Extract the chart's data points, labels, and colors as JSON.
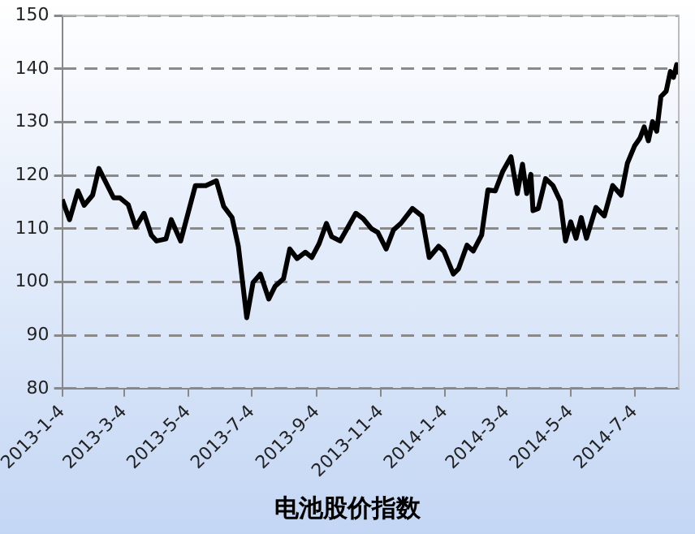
{
  "chart_data": {
    "type": "line",
    "xlabel": "电池股价指数",
    "x": [
      "2013-01-04",
      "2013-01-11",
      "2013-01-19",
      "2013-01-25",
      "2013-02-02",
      "2013-02-08",
      "2013-02-22",
      "2013-02-28",
      "2013-03-08",
      "2013-03-15",
      "2013-03-23",
      "2013-03-30",
      "2013-04-04",
      "2013-04-13",
      "2013-04-18",
      "2013-04-27",
      "2013-05-11",
      "2013-05-21",
      "2013-05-31",
      "2013-06-07",
      "2013-06-15",
      "2013-06-21",
      "2013-06-29",
      "2013-07-05",
      "2013-07-12",
      "2013-07-20",
      "2013-07-26",
      "2013-08-03",
      "2013-08-09",
      "2013-08-16",
      "2013-08-24",
      "2013-08-30",
      "2013-09-06",
      "2013-09-13",
      "2013-09-18",
      "2013-09-26",
      "2013-10-11",
      "2013-10-18",
      "2013-10-26",
      "2013-11-01",
      "2013-11-09",
      "2013-11-16",
      "2013-11-23",
      "2013-12-04",
      "2013-12-13",
      "2013-12-20",
      "2013-12-29",
      "2014-01-03",
      "2014-01-12",
      "2014-01-17",
      "2014-01-25",
      "2014-01-31",
      "2014-02-08",
      "2014-02-14",
      "2014-02-21",
      "2014-02-28",
      "2014-03-08",
      "2014-03-14",
      "2014-03-19",
      "2014-03-23",
      "2014-03-27",
      "2014-03-29",
      "2014-04-03",
      "2014-04-10",
      "2014-04-17",
      "2014-04-24",
      "2014-04-29",
      "2014-05-04",
      "2014-05-09",
      "2014-05-14",
      "2014-05-19",
      "2014-05-28",
      "2014-06-05",
      "2014-06-13",
      "2014-06-21",
      "2014-06-27",
      "2014-07-04",
      "2014-07-09",
      "2014-07-13",
      "2014-07-17",
      "2014-07-21",
      "2014-07-25",
      "2014-07-29",
      "2014-08-03",
      "2014-08-07",
      "2014-08-10",
      "2014-08-13",
      "2014-08-15"
    ],
    "series": [
      {
        "color": "#000000",
        "values": [
          115.5,
          111.7,
          117.1,
          114.4,
          116.3,
          121.3,
          115.8,
          115.8,
          114.5,
          110.3,
          112.9,
          108.8,
          107.7,
          108.1,
          111.7,
          107.7,
          118.1,
          118.1,
          119.0,
          114.2,
          112.1,
          106.7,
          93.3,
          99.9,
          101.5,
          96.8,
          99.2,
          100.6,
          106.2,
          104.4,
          105.6,
          104.6,
          107.2,
          111.0,
          108.5,
          107.7,
          112.9,
          111.9,
          110.0,
          109.3,
          106.2,
          109.8,
          111.0,
          113.8,
          112.4,
          104.6,
          106.7,
          105.8,
          101.5,
          102.5,
          106.9,
          105.8,
          108.8,
          117.3,
          117.1,
          120.7,
          123.5,
          116.6,
          122.1,
          116.6,
          120.2,
          113.4,
          113.8,
          119.4,
          118.1,
          115.2,
          107.7,
          111.3,
          108.2,
          112.1,
          108.2,
          114.0,
          112.4,
          118.1,
          116.3,
          122.3,
          125.6,
          127.0,
          129.1,
          126.5,
          130.1,
          128.3,
          134.8,
          135.8,
          139.5,
          138.4,
          140.8,
          139.0
        ]
      }
    ],
    "xlim": [
      "2013-01-04",
      "2014-08-15"
    ],
    "xticks": [
      {
        "value": "2013-01-04",
        "label": "2013-1-4"
      },
      {
        "value": "2013-03-04",
        "label": "2013-3-4"
      },
      {
        "value": "2013-05-04",
        "label": "2013-5-4"
      },
      {
        "value": "2013-07-04",
        "label": "2013-7-4"
      },
      {
        "value": "2013-09-04",
        "label": "2013-9-4"
      },
      {
        "value": "2013-11-04",
        "label": "2013-11-4"
      },
      {
        "value": "2014-01-04",
        "label": "2014-1-4"
      },
      {
        "value": "2014-03-04",
        "label": "2014-3-4"
      },
      {
        "value": "2014-05-04",
        "label": "2014-5-4"
      },
      {
        "value": "2014-07-04",
        "label": "2014-7-4"
      }
    ],
    "ylim": [
      80,
      150
    ],
    "yticks": [
      80,
      90,
      100,
      110,
      120,
      130,
      140,
      150
    ],
    "grid": "y",
    "legend": false,
    "marker": "none",
    "line_style": "solid"
  }
}
